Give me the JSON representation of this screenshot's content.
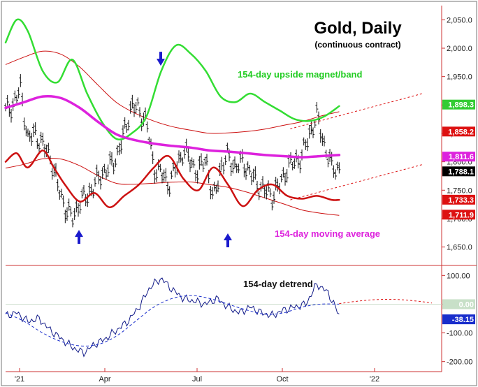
{
  "chart_data": [
    {
      "type": "line",
      "title": "Gold, Daily",
      "subtitle": "(continuous contract)",
      "y_ticks": [
        {
          "value": 1650,
          "label": "1,650.0"
        },
        {
          "value": 1700,
          "label": "1,700.0"
        },
        {
          "value": 1750,
          "label": "1,750.0"
        },
        {
          "value": 1800,
          "label": "1,800.0"
        },
        {
          "value": 1850,
          "label": "1,850.0"
        },
        {
          "value": 1900,
          "label": "1,900.0"
        },
        {
          "value": 1950,
          "label": "1,950.0"
        },
        {
          "value": 2000,
          "label": "2,000.0"
        },
        {
          "value": 2050,
          "label": "2,050.0"
        }
      ],
      "ylim": [
        1620,
        2075
      ],
      "x_ticks": [
        "'21",
        "Apr",
        "Jul",
        "Oct",
        "'22"
      ],
      "grid": false,
      "annotations": {
        "upper_band_label": "154-day upside magnet/band",
        "ma_label": "154-day moving average"
      },
      "value_badges": [
        {
          "label": "1,898.3",
          "value": 1898.3,
          "color": "#33cc33",
          "text_color": "#ffffff"
        },
        {
          "label": "1,858.2",
          "value": 1858.2,
          "color": "#dd1111",
          "text_color": "#ffffff"
        },
        {
          "label": "1,811.6",
          "value": 1811.6,
          "color": "#dd22dd",
          "text_color": "#ffffff"
        },
        {
          "label": "1,788.1",
          "value": 1788.1,
          "color": "#000000",
          "text_color": "#ffffff"
        },
        {
          "label": "1,733.3",
          "value": 1733.3,
          "color": "#dd1111",
          "text_color": "#ffffff"
        },
        {
          "label": "1,711.9",
          "value": 1711.9,
          "color": "#dd1111",
          "text_color": "#ffffff"
        }
      ],
      "arrows": [
        {
          "direction": "up",
          "x": 0.21,
          "price": 1690
        },
        {
          "direction": "down",
          "x": 0.41,
          "price": 1942
        },
        {
          "direction": "up",
          "x": 0.61,
          "price": 1684
        }
      ],
      "series": [
        {
          "role": "price",
          "color": "#000000",
          "x": [
            0,
            0.02,
            0.04,
            0.06,
            0.08,
            0.1,
            0.12,
            0.14,
            0.16,
            0.18,
            0.2,
            0.22,
            0.24,
            0.26,
            0.28,
            0.3,
            0.32,
            0.34,
            0.36,
            0.38,
            0.4,
            0.42,
            0.44,
            0.46,
            0.48,
            0.5,
            0.52,
            0.54,
            0.56,
            0.58,
            0.6,
            0.62,
            0.64,
            0.66,
            0.68,
            0.7,
            0.72,
            0.74,
            0.76,
            0.78,
            0.8,
            0.82,
            0.84,
            0.86,
            0.88,
            0.9
          ],
          "values": [
            1890,
            1900,
            1930,
            1840,
            1850,
            1830,
            1810,
            1760,
            1720,
            1700,
            1730,
            1740,
            1760,
            1780,
            1790,
            1810,
            1850,
            1900,
            1890,
            1870,
            1790,
            1780,
            1760,
            1790,
            1820,
            1800,
            1780,
            1810,
            1730,
            1790,
            1810,
            1790,
            1800,
            1780,
            1760,
            1750,
            1740,
            1760,
            1790,
            1800,
            1810,
            1850,
            1880,
            1830,
            1790,
            1788
          ]
        },
        {
          "role": "upper_band",
          "color": "#33dd33",
          "x": [
            0,
            0.03,
            0.06,
            0.1,
            0.14,
            0.18,
            0.22,
            0.26,
            0.3,
            0.34,
            0.38,
            0.42,
            0.46,
            0.5,
            0.54,
            0.58,
            0.62,
            0.66,
            0.7,
            0.74,
            0.78,
            0.82,
            0.86,
            0.9
          ],
          "values": [
            2010,
            2050,
            2030,
            1960,
            1940,
            1980,
            1920,
            1870,
            1840,
            1850,
            1880,
            1960,
            2005,
            1990,
            1960,
            1915,
            1905,
            1920,
            1905,
            1890,
            1875,
            1872,
            1880,
            1898
          ]
        },
        {
          "role": "moving_average",
          "color": "#dd22dd",
          "x": [
            0,
            0.05,
            0.1,
            0.15,
            0.2,
            0.25,
            0.3,
            0.35,
            0.4,
            0.45,
            0.5,
            0.55,
            0.6,
            0.65,
            0.7,
            0.75,
            0.8,
            0.85,
            0.9
          ],
          "values": [
            1895,
            1905,
            1915,
            1912,
            1895,
            1870,
            1848,
            1838,
            1832,
            1828,
            1825,
            1820,
            1818,
            1815,
            1812,
            1810,
            1808,
            1810,
            1812
          ]
        },
        {
          "role": "lower_band",
          "color": "#cc1111",
          "x": [
            0,
            0.03,
            0.06,
            0.1,
            0.13,
            0.16,
            0.2,
            0.24,
            0.28,
            0.32,
            0.36,
            0.4,
            0.44,
            0.48,
            0.52,
            0.56,
            0.6,
            0.64,
            0.68,
            0.72,
            0.76,
            0.8,
            0.84,
            0.88,
            0.9
          ],
          "values": [
            1800,
            1815,
            1790,
            1820,
            1790,
            1760,
            1730,
            1745,
            1720,
            1740,
            1760,
            1790,
            1810,
            1770,
            1750,
            1790,
            1760,
            1722,
            1750,
            1760,
            1740,
            1735,
            1740,
            1733,
            1733
          ]
        }
      ],
      "envelope": {
        "color": "#cc1111"
      }
    },
    {
      "type": "line",
      "title": "154-day detrend",
      "y_ticks": [
        {
          "value": 100,
          "label": "100.00"
        },
        {
          "value": 0,
          "label": "0.00"
        },
        {
          "value": -100,
          "label": "-100.00"
        },
        {
          "value": -200,
          "label": "-200.00"
        }
      ],
      "ylim": [
        -230,
        130
      ],
      "value_badges": [
        {
          "label": "0.00",
          "value": 0,
          "color": "#c8e0c8",
          "text_color": "#ffffff"
        },
        {
          "label": "-38.15",
          "value": -38.15,
          "color": "#1a2ecc",
          "text_color": "#ffffff"
        }
      ],
      "series": [
        {
          "role": "detrend",
          "color": "#111a88",
          "x": [
            0,
            0.03,
            0.06,
            0.09,
            0.12,
            0.15,
            0.18,
            0.21,
            0.24,
            0.27,
            0.3,
            0.33,
            0.36,
            0.39,
            0.42,
            0.45,
            0.48,
            0.51,
            0.54,
            0.57,
            0.6,
            0.63,
            0.66,
            0.69,
            0.72,
            0.75,
            0.78,
            0.81,
            0.84,
            0.87,
            0.9
          ],
          "values": [
            -40,
            -30,
            -60,
            -50,
            -90,
            -120,
            -150,
            -170,
            -140,
            -120,
            -90,
            -60,
            -10,
            60,
            90,
            50,
            20,
            10,
            0,
            20,
            -10,
            -30,
            -10,
            -30,
            -40,
            -20,
            -10,
            0,
            70,
            40,
            -38
          ]
        },
        {
          "role": "detrend_cycle",
          "color": "#1a2ecc",
          "x": [
            0,
            0.05,
            0.1,
            0.15,
            0.2,
            0.25,
            0.3,
            0.35,
            0.4,
            0.45,
            0.5,
            0.55,
            0.6,
            0.65,
            0.7,
            0.75,
            0.8,
            0.85,
            0.9
          ],
          "values": [
            -30,
            -60,
            -100,
            -130,
            -145,
            -140,
            -110,
            -60,
            -10,
            20,
            30,
            20,
            0,
            -20,
            -35,
            -30,
            -10,
            0,
            0
          ]
        }
      ]
    }
  ]
}
